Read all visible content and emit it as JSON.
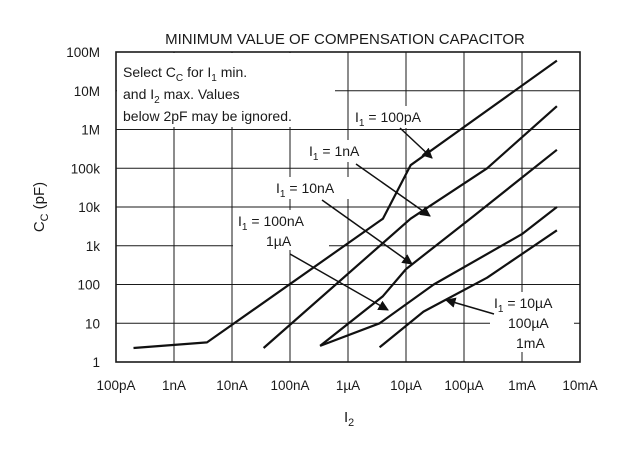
{
  "chart_data": {
    "type": "line",
    "title": "MINIMUM VALUE OF COMPENSATION CAPACITOR",
    "xlabel": {
      "main": "I",
      "sub": "2"
    },
    "ylabel": {
      "main": "C",
      "sub": "C",
      "tail": " (pF)"
    },
    "x_scale": "log",
    "y_scale": "log",
    "xlim": [
      1e-10,
      0.01
    ],
    "ylim": [
      1,
      100000000.0
    ],
    "grid": true,
    "x_ticks": [
      {
        "value": 1e-10,
        "label": "100pA"
      },
      {
        "value": 1e-09,
        "label": "1nA"
      },
      {
        "value": 1e-08,
        "label": "10nA"
      },
      {
        "value": 1e-07,
        "label": "100nA"
      },
      {
        "value": 1e-06,
        "label": "1µA"
      },
      {
        "value": 1e-05,
        "label": "10µA"
      },
      {
        "value": 0.0001,
        "label": "100µA"
      },
      {
        "value": 0.001,
        "label": "1mA"
      },
      {
        "value": 0.01,
        "label": "10mA"
      }
    ],
    "y_ticks": [
      {
        "value": 1,
        "label": "1"
      },
      {
        "value": 10,
        "label": "10"
      },
      {
        "value": 100,
        "label": "100"
      },
      {
        "value": 1000,
        "label": "1k"
      },
      {
        "value": 10000,
        "label": "10k"
      },
      {
        "value": 100000,
        "label": "100k"
      },
      {
        "value": 1000000,
        "label": "1M"
      },
      {
        "value": 10000000,
        "label": "10M"
      },
      {
        "value": 100000000,
        "label": "100M"
      }
    ],
    "note": [
      [
        {
          "t": "Select C"
        },
        {
          "t": "C",
          "sub": true
        },
        {
          "t": " for I"
        },
        {
          "t": "1",
          "sub": true
        },
        {
          "t": " min."
        }
      ],
      [
        {
          "t": "and I"
        },
        {
          "t": "2",
          "sub": true
        },
        {
          "t": " max. Values"
        }
      ],
      [
        {
          "t": "below 2pF may be ignored."
        }
      ]
    ],
    "series": [
      {
        "name": "I1 = 100pA",
        "label": [
          [
            {
              "t": "I"
            },
            {
              "t": "1",
              "sub": true
            },
            {
              "t": " = 100pA"
            }
          ]
        ],
        "points": [
          [
            2e-10,
            2.3
          ],
          [
            3.7e-09,
            3.2
          ],
          [
            4e-06,
            5000
          ],
          [
            1.2e-05,
            120000.0
          ],
          [
            0.004,
            60000000.0
          ]
        ]
      },
      {
        "name": "I1 = 1nA",
        "label": [
          [
            {
              "t": "I"
            },
            {
              "t": "1",
              "sub": true
            },
            {
              "t": " = 1nA"
            }
          ]
        ],
        "points": [
          [
            3.5e-08,
            2.3
          ],
          [
            1.2e-05,
            5000
          ],
          [
            0.00025,
            100000.0
          ],
          [
            0.004,
            4000000.0
          ]
        ]
      },
      {
        "name": "I1 = 10nA",
        "label": [
          [
            {
              "t": "I"
            },
            {
              "t": "1",
              "sub": true
            },
            {
              "t": " = 10nA"
            }
          ]
        ],
        "points": [
          [
            3.3e-07,
            2.6
          ],
          [
            4e-06,
            50
          ],
          [
            1e-05,
            250
          ],
          [
            0.00015,
            6000
          ],
          [
            0.004,
            300000.0
          ]
        ]
      },
      {
        "name": "I1 = 100nA, 1µA",
        "label": [
          [
            {
              "t": "I"
            },
            {
              "t": "1",
              "sub": true
            },
            {
              "t": " = 100nA"
            }
          ],
          [
            {
              "t": "1µA"
            }
          ]
        ],
        "points": [
          [
            3.3e-07,
            2.6
          ],
          [
            3.5e-06,
            10
          ],
          [
            3e-05,
            100
          ],
          [
            0.001,
            2000
          ],
          [
            0.004,
            10000.0
          ]
        ]
      },
      {
        "name": "I1 = 10µA, 100µA, 1mA",
        "label": [
          [
            {
              "t": "I"
            },
            {
              "t": "1",
              "sub": true
            },
            {
              "t": " = 10µA"
            }
          ],
          [
            {
              "t": "100µA"
            }
          ],
          [
            {
              "t": "1mA"
            }
          ]
        ],
        "points": [
          [
            3.5e-06,
            2.4
          ],
          [
            2e-05,
            20
          ],
          [
            0.00025,
            150
          ],
          [
            0.004,
            2500
          ]
        ]
      }
    ]
  }
}
